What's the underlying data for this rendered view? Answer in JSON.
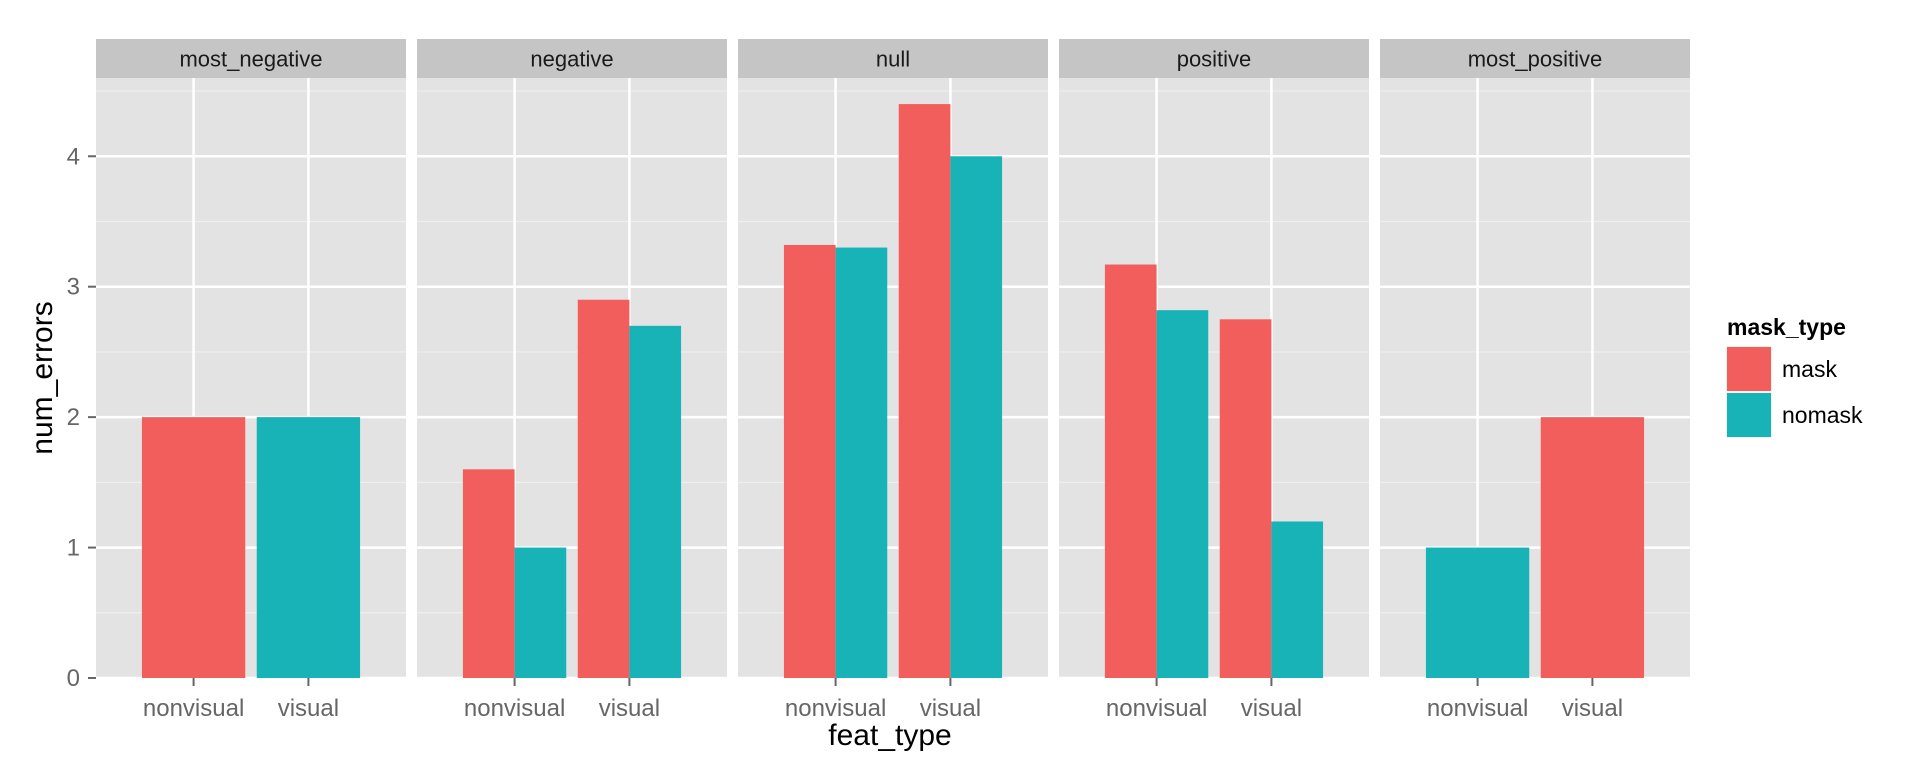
{
  "chart_data": {
    "type": "bar",
    "xlabel": "feat_type",
    "ylabel": "num_errors",
    "ylim": [
      0,
      4.6
    ],
    "yticks": [
      0,
      1,
      2,
      3,
      4
    ],
    "grid": true,
    "categories": [
      "nonvisual",
      "visual"
    ],
    "legend": {
      "title": "mask_type",
      "position": "right",
      "entries": [
        {
          "name": "mask",
          "color": "#F25E5B"
        },
        {
          "name": "nomask",
          "color": "#18B3B7"
        }
      ]
    },
    "facets": [
      {
        "name": "most_negative",
        "groups": [
          {
            "category": "nonvisual",
            "bars": [
              {
                "series": "mask",
                "value": 2.0
              }
            ]
          },
          {
            "category": "visual",
            "bars": [
              {
                "series": "nomask",
                "value": 2.0
              }
            ]
          }
        ]
      },
      {
        "name": "negative",
        "groups": [
          {
            "category": "nonvisual",
            "bars": [
              {
                "series": "mask",
                "value": 1.6
              },
              {
                "series": "nomask",
                "value": 1.0
              }
            ]
          },
          {
            "category": "visual",
            "bars": [
              {
                "series": "mask",
                "value": 2.9
              },
              {
                "series": "nomask",
                "value": 2.7
              }
            ]
          }
        ]
      },
      {
        "name": "null",
        "groups": [
          {
            "category": "nonvisual",
            "bars": [
              {
                "series": "mask",
                "value": 3.32
              },
              {
                "series": "nomask",
                "value": 3.3
              }
            ]
          },
          {
            "category": "visual",
            "bars": [
              {
                "series": "mask",
                "value": 4.4
              },
              {
                "series": "nomask",
                "value": 4.0
              }
            ]
          }
        ]
      },
      {
        "name": "positive",
        "groups": [
          {
            "category": "nonvisual",
            "bars": [
              {
                "series": "mask",
                "value": 3.17
              },
              {
                "series": "nomask",
                "value": 2.82
              }
            ]
          },
          {
            "category": "visual",
            "bars": [
              {
                "series": "mask",
                "value": 2.75
              },
              {
                "series": "nomask",
                "value": 1.2
              }
            ]
          }
        ]
      },
      {
        "name": "most_positive",
        "groups": [
          {
            "category": "nonvisual",
            "bars": [
              {
                "series": "nomask",
                "value": 1.0
              }
            ]
          },
          {
            "category": "visual",
            "bars": [
              {
                "series": "mask",
                "value": 2.0
              }
            ]
          }
        ]
      }
    ]
  }
}
